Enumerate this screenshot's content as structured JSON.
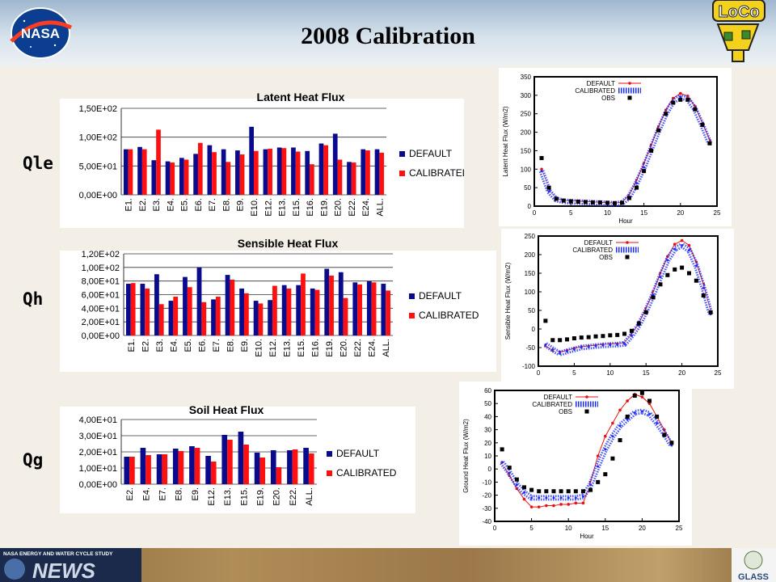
{
  "header": {
    "title": "2008 Calibration"
  },
  "logos": {
    "nasa": "NASA",
    "loco": "LoCo",
    "news_top": "NASA ENERGY AND WATER CYCLE STUDY",
    "news": "NEWS",
    "glass": "GLASS"
  },
  "labels": {
    "qle": "Qle",
    "qh": "Qh",
    "qg": "Qg"
  },
  "chart_data": [
    {
      "type": "bar",
      "title": "Latent Heat Flux",
      "categories": [
        "E1.",
        "E2.",
        "E3.",
        "E4.",
        "E5.",
        "E6.",
        "E7.",
        "E8.",
        "E9.",
        "E10.",
        "E12.",
        "E13.",
        "E15.",
        "E16.",
        "E19.",
        "E20.",
        "E22.",
        "E24.",
        "ALL."
      ],
      "series": [
        {
          "name": "DEFAULT",
          "color": "#0a0a8c",
          "values": [
            79,
            83,
            60,
            58,
            64,
            71,
            86,
            79,
            77,
            118,
            79,
            82,
            82,
            76,
            89,
            106,
            57,
            79,
            79
          ]
        },
        {
          "name": "CALIBRATED",
          "color": "#ff1010",
          "values": [
            79,
            79,
            113,
            56,
            61,
            90,
            74,
            57,
            70,
            76,
            80,
            81,
            75,
            53,
            86,
            61,
            56,
            77,
            73
          ]
        }
      ],
      "yticks": [
        "0,00E+00",
        "5,00E+01",
        "1,00E+02",
        "1,50E+02"
      ],
      "ylim": [
        0,
        150
      ],
      "legend": "right"
    },
    {
      "type": "bar",
      "title": "Sensible Heat Flux",
      "categories": [
        "E1.",
        "E2.",
        "E3.",
        "E4.",
        "E5.",
        "E6.",
        "E7.",
        "E8.",
        "E9.",
        "E10.",
        "E12.",
        "E13.",
        "E15.",
        "E16.",
        "E19.",
        "E20.",
        "E22.",
        "E24.",
        "ALL."
      ],
      "series": [
        {
          "name": "DEFAULT",
          "color": "#0a0a8c",
          "values": [
            76,
            76,
            90,
            51,
            86,
            100,
            53,
            89,
            69,
            51,
            52,
            74,
            74,
            69,
            98,
            93,
            78,
            80,
            76
          ]
        },
        {
          "name": "CALIBRATED",
          "color": "#ff1010",
          "values": [
            77,
            69,
            46,
            57,
            71,
            49,
            57,
            82,
            62,
            47,
            73,
            69,
            91,
            67,
            88,
            55,
            75,
            78,
            66
          ]
        }
      ],
      "yticks": [
        "0,00E+00",
        "2,00E+01",
        "4,00E+01",
        "6,00E+01",
        "8,00E+01",
        "1,00E+02",
        "1,20E+02"
      ],
      "ylim": [
        0,
        120
      ],
      "legend": "right"
    },
    {
      "type": "bar",
      "title": "Soil Heat Flux",
      "categories": [
        "E2.",
        "E4.",
        "E7.",
        "E8.",
        "E9.",
        "E12.",
        "E13.",
        "E15.",
        "E19.",
        "E20.",
        "E22.",
        "ALL."
      ],
      "series": [
        {
          "name": "DEFAULT",
          "color": "#0a0a8c",
          "values": [
            17,
            22.5,
            18.5,
            22,
            23.5,
            17.5,
            30.5,
            32.5,
            19.5,
            21,
            21,
            22.5
          ]
        },
        {
          "name": "CALIBRATED",
          "color": "#ff1010",
          "values": [
            17,
            18,
            18.5,
            20.5,
            22.5,
            14,
            27.5,
            24.5,
            16.5,
            10.5,
            21.5,
            19
          ]
        }
      ],
      "yticks": [
        "0,00E+00",
        "1,00E+01",
        "2,00E+01",
        "3,00E+01",
        "4,00E+01"
      ],
      "ylim": [
        0,
        40
      ],
      "legend": "right"
    },
    {
      "type": "line",
      "ylabel": "Latent Heat Flux (W/m2)",
      "xlabel": "Hour",
      "xlim": [
        0,
        25
      ],
      "ylim": [
        0,
        350
      ],
      "xticks": [
        "0",
        "5",
        "10",
        "15",
        "20",
        "25"
      ],
      "yticks": [
        "0",
        "50",
        "100",
        "150",
        "200",
        "250",
        "300",
        "350"
      ],
      "x": [
        1,
        2,
        3,
        4,
        5,
        6,
        7,
        8,
        9,
        10,
        11,
        12,
        13,
        14,
        15,
        16,
        17,
        18,
        19,
        20,
        21,
        22,
        23,
        24
      ],
      "series": [
        {
          "name": "DEFAULT",
          "color": "#e81010",
          "values": [
            100,
            42,
            20,
            15,
            14,
            13,
            12,
            11,
            10,
            9,
            8,
            10,
            30,
            70,
            115,
            165,
            215,
            260,
            292,
            305,
            298,
            270,
            225,
            178
          ]
        },
        {
          "name": "CALIBRATED",
          "color": "#1a2cff",
          "values": [
            95,
            40,
            18,
            13,
            12,
            11,
            10,
            9,
            8,
            7,
            6,
            8,
            25,
            62,
            105,
            155,
            205,
            250,
            283,
            296,
            290,
            262,
            218,
            170
          ]
        },
        {
          "name": "OBS",
          "color": "#000000",
          "values": [
            130,
            50,
            20,
            15,
            13,
            12,
            11,
            10,
            10,
            9,
            8,
            9,
            22,
            50,
            95,
            150,
            205,
            250,
            280,
            288,
            288,
            262,
            220,
            170
          ]
        }
      ]
    },
    {
      "type": "line",
      "ylabel": "Sensible Heat Flux (W/m2)",
      "xlabel": "",
      "xlim": [
        0,
        25
      ],
      "ylim": [
        -100,
        250
      ],
      "xticks": [
        "0",
        "5",
        "10",
        "15",
        "20",
        "25"
      ],
      "yticks": [
        "-100",
        "-50",
        "0",
        "50",
        "100",
        "150",
        "200",
        "250"
      ],
      "x": [
        1,
        2,
        3,
        4,
        5,
        6,
        7,
        8,
        9,
        10,
        11,
        12,
        13,
        14,
        15,
        16,
        17,
        18,
        19,
        20,
        21,
        22,
        23,
        24
      ],
      "series": [
        {
          "name": "DEFAULT",
          "color": "#e81010",
          "values": [
            -45,
            -58,
            -62,
            -58,
            -52,
            -48,
            -46,
            -44,
            -42,
            -41,
            -40,
            -38,
            -15,
            15,
            55,
            100,
            150,
            195,
            228,
            238,
            225,
            180,
            120,
            45
          ]
        },
        {
          "name": "CALIBRATED",
          "color": "#1a2cff",
          "values": [
            -42,
            -55,
            -66,
            -60,
            -55,
            -50,
            -48,
            -46,
            -44,
            -43,
            -42,
            -40,
            -18,
            10,
            48,
            92,
            140,
            185,
            215,
            225,
            212,
            170,
            110,
            40
          ]
        },
        {
          "name": "OBS",
          "color": "#000000",
          "values": [
            22,
            -30,
            -30,
            -28,
            -25,
            -23,
            -22,
            -20,
            -19,
            -17,
            -16,
            -13,
            -5,
            15,
            45,
            85,
            120,
            145,
            160,
            165,
            150,
            130,
            90,
            45
          ]
        }
      ]
    },
    {
      "type": "line",
      "ylabel": "Ground Heat Flux (W/m2)",
      "xlabel": "Hour",
      "xlim": [
        0,
        25
      ],
      "ylim": [
        -40,
        60
      ],
      "xticks": [
        "0",
        "5",
        "10",
        "15",
        "20",
        "25"
      ],
      "yticks": [
        "-40",
        "-30",
        "-20",
        "-10",
        "0",
        "10",
        "20",
        "30",
        "40",
        "50",
        "60"
      ],
      "x": [
        1,
        2,
        3,
        4,
        5,
        6,
        7,
        8,
        9,
        10,
        11,
        12,
        13,
        14,
        15,
        16,
        17,
        18,
        19,
        20,
        21,
        22,
        23,
        24
      ],
      "series": [
        {
          "name": "DEFAULT",
          "color": "#e81010",
          "values": [
            5,
            -5,
            -15,
            -23,
            -29,
            -29,
            -28,
            -28,
            -27,
            -27,
            -26,
            -26,
            -10,
            10,
            25,
            35,
            45,
            52,
            57,
            55,
            50,
            40,
            30,
            20
          ]
        },
        {
          "name": "CALIBRATED",
          "color": "#1a2cff",
          "values": [
            5,
            -3,
            -12,
            -18,
            -22,
            -22,
            -22,
            -22,
            -22,
            -22,
            -22,
            -21,
            -12,
            2,
            15,
            25,
            33,
            38,
            43,
            44,
            42,
            35,
            27,
            18
          ]
        },
        {
          "name": "OBS",
          "color": "#000000",
          "values": [
            15,
            1,
            -8,
            -14,
            -16,
            -17,
            -17,
            -17,
            -17,
            -17,
            -17,
            -17,
            -16,
            -10,
            -4,
            8,
            22,
            40,
            56,
            58,
            52,
            40,
            26,
            20
          ]
        }
      ]
    }
  ]
}
